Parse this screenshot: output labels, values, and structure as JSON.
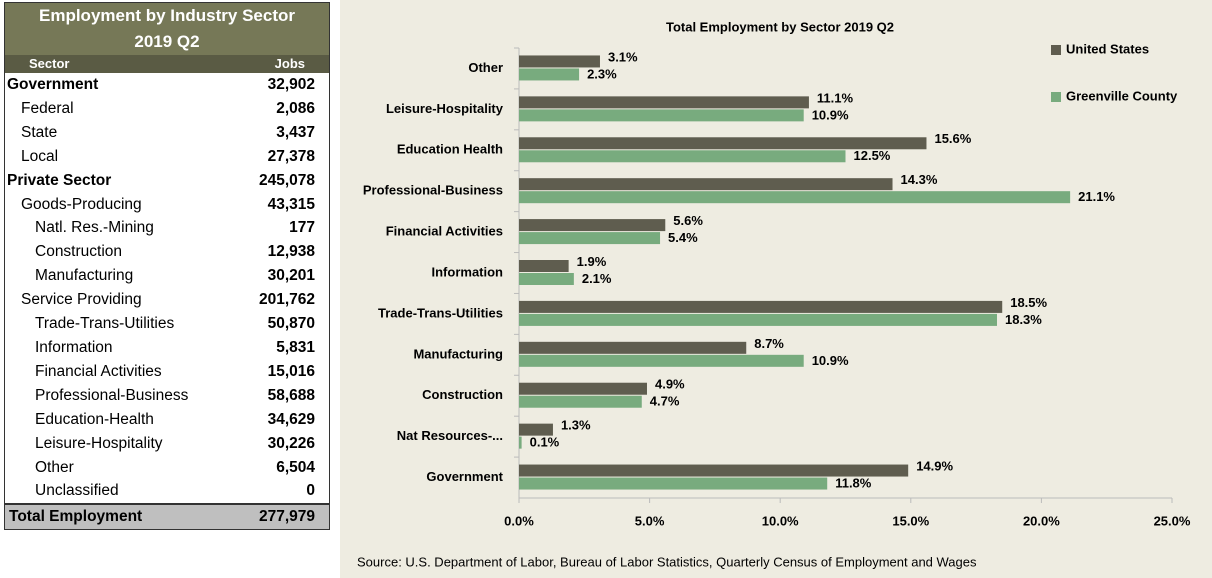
{
  "table": {
    "title": "Employment by Industry Sector",
    "subtitle": "2019 Q2",
    "header": [
      "Sector",
      "Jobs"
    ],
    "rows": [
      [
        "Government",
        "32,902"
      ],
      [
        "Federal",
        "2,086"
      ],
      [
        "State",
        "3,437"
      ],
      [
        "Local",
        "27,378"
      ],
      [
        "Private Sector",
        "245,078"
      ],
      [
        "Goods-Producing",
        "43,315"
      ],
      [
        "Natl. Res.-Mining",
        "177"
      ],
      [
        "Construction",
        "12,938"
      ],
      [
        "Manufacturing",
        "30,201"
      ],
      [
        "Service Providing",
        "201,762"
      ],
      [
        "Trade-Trans-Utilities",
        "50,870"
      ],
      [
        "Information",
        "5,831"
      ],
      [
        "Financial Activities",
        "15,016"
      ],
      [
        "Professional-Business",
        "58,688"
      ],
      [
        "Education-Health",
        "34,629"
      ],
      [
        "Leisure-Hospitality",
        "30,226"
      ],
      [
        "Other",
        "6,504"
      ],
      [
        "Unclassified",
        "0"
      ]
    ],
    "total": [
      "Total Employment",
      "277,979"
    ]
  },
  "chart_data": {
    "type": "hbar",
    "title": "Total Employment by Sector  2019 Q2",
    "categories": [
      "Other",
      "Leisure-Hospitality",
      "Education Health",
      "Professional-Business",
      "Financial Activities",
      "Information",
      "Trade-Trans-Utilities",
      "Manufacturing",
      "Construction",
      "Nat Resources-...",
      "Government"
    ],
    "series": [
      {
        "name": "United States",
        "color": "#5f5d4f",
        "values": [
          3.1,
          11.1,
          15.6,
          14.3,
          5.6,
          1.9,
          18.5,
          8.7,
          4.9,
          1.3,
          14.9
        ],
        "value_labels": [
          "3.1%",
          "11.1%",
          "15.6%",
          "14.3%",
          "5.6%",
          "1.9%",
          "18.5%",
          "8.7%",
          "4.9%",
          "1.3%",
          "14.9%"
        ]
      },
      {
        "name": "Greenville County",
        "color": "#78ab7e",
        "values": [
          2.3,
          10.9,
          12.5,
          21.1,
          5.4,
          2.1,
          18.3,
          10.9,
          4.7,
          0.1,
          11.8
        ],
        "value_labels": [
          "2.3%",
          "10.9%",
          "12.5%",
          "21.1%",
          "5.4%",
          "2.1%",
          "18.3%",
          "10.9%",
          "4.7%",
          "0.1%",
          "11.8%"
        ]
      }
    ],
    "xlim": [
      0,
      25
    ],
    "xticks": [
      {
        "value": 0,
        "label": "0.0%"
      },
      {
        "value": 5,
        "label": "5.0%"
      },
      {
        "value": 10,
        "label": "10.0%"
      },
      {
        "value": 15,
        "label": "15.0%"
      },
      {
        "value": 20,
        "label": "20.0%"
      },
      {
        "value": 25,
        "label": "25.0%"
      }
    ],
    "legend": "top-right",
    "source": "Source: U.S. Department of Labor, Bureau of Labor Statistics, Quarterly Census of Employment and Wages"
  }
}
